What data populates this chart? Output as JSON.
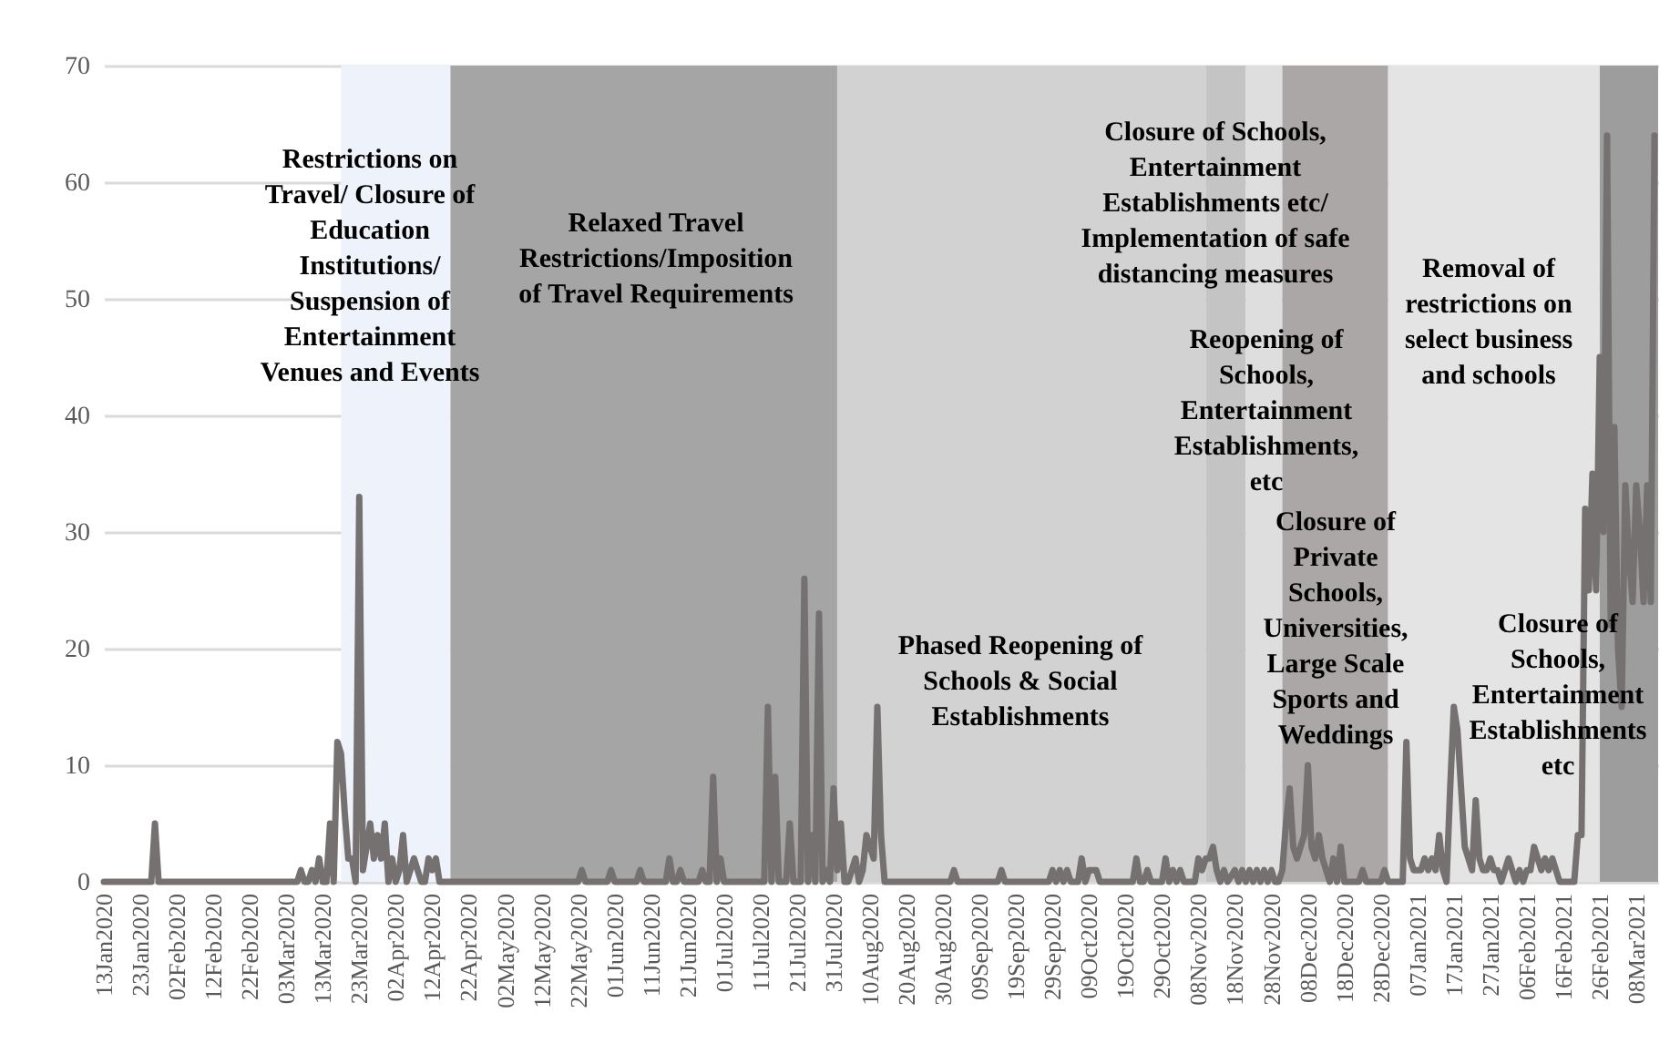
{
  "chart_data": {
    "type": "line",
    "series": [
      {
        "color": "#767171",
        "x": [
          "2020-01-13",
          "2020-01-26",
          "2020-01-27",
          "2020-01-28",
          "2020-03-06",
          "2020-03-07",
          "2020-03-08",
          "2020-03-09",
          "2020-03-10",
          "2020-03-11",
          "2020-03-12",
          "2020-03-13",
          "2020-03-14",
          "2020-03-15",
          "2020-03-16",
          "2020-03-17",
          "2020-03-18",
          "2020-03-19",
          "2020-03-20",
          "2020-03-21",
          "2020-03-22",
          "2020-03-23",
          "2020-03-24",
          "2020-03-25",
          "2020-03-26",
          "2020-03-27",
          "2020-03-28",
          "2020-03-29",
          "2020-03-30",
          "2020-03-31",
          "2020-04-01",
          "2020-04-02",
          "2020-04-03",
          "2020-04-04",
          "2020-04-05",
          "2020-04-06",
          "2020-04-07",
          "2020-04-08",
          "2020-04-09",
          "2020-04-10",
          "2020-04-11",
          "2020-04-12",
          "2020-04-13",
          "2020-04-14",
          "2020-05-22",
          "2020-05-23",
          "2020-05-24",
          "2020-05-30",
          "2020-05-31",
          "2020-06-01",
          "2020-06-07",
          "2020-06-08",
          "2020-06-09",
          "2020-06-15",
          "2020-06-16",
          "2020-06-17",
          "2020-06-18",
          "2020-06-19",
          "2020-06-20",
          "2020-06-24",
          "2020-06-25",
          "2020-06-26",
          "2020-06-27",
          "2020-06-28",
          "2020-06-29",
          "2020-06-30",
          "2020-07-01",
          "2020-07-12",
          "2020-07-13",
          "2020-07-14",
          "2020-07-15",
          "2020-07-16",
          "2020-07-18",
          "2020-07-19",
          "2020-07-20",
          "2020-07-22",
          "2020-07-23",
          "2020-07-24",
          "2020-07-25",
          "2020-07-26",
          "2020-07-27",
          "2020-07-28",
          "2020-07-29",
          "2020-07-30",
          "2020-07-31",
          "2020-08-01",
          "2020-08-02",
          "2020-08-03",
          "2020-08-04",
          "2020-08-05",
          "2020-08-06",
          "2020-08-07",
          "2020-08-08",
          "2020-08-09",
          "2020-08-10",
          "2020-08-11",
          "2020-08-12",
          "2020-08-13",
          "2020-08-14",
          "2020-09-01",
          "2020-09-02",
          "2020-09-03",
          "2020-09-14",
          "2020-09-15",
          "2020-09-16",
          "2020-09-28",
          "2020-09-29",
          "2020-09-30",
          "2020-10-01",
          "2020-10-02",
          "2020-10-03",
          "2020-10-04",
          "2020-10-06",
          "2020-10-07",
          "2020-10-08",
          "2020-10-09",
          "2020-10-10",
          "2020-10-11",
          "2020-10-12",
          "2020-10-21",
          "2020-10-22",
          "2020-10-23",
          "2020-10-24",
          "2020-10-25",
          "2020-10-26",
          "2020-10-29",
          "2020-10-30",
          "2020-10-31",
          "2020-11-01",
          "2020-11-02",
          "2020-11-03",
          "2020-11-04",
          "2020-11-07",
          "2020-11-08",
          "2020-11-09",
          "2020-11-10",
          "2020-11-11",
          "2020-11-12",
          "2020-11-13",
          "2020-11-14",
          "2020-11-15",
          "2020-11-16",
          "2020-11-18",
          "2020-11-19",
          "2020-11-20",
          "2020-11-21",
          "2020-11-22",
          "2020-11-23",
          "2020-11-24",
          "2020-11-25",
          "2020-11-26",
          "2020-11-27",
          "2020-11-28",
          "2020-11-29",
          "2020-11-30",
          "2020-12-01",
          "2020-12-02",
          "2020-12-03",
          "2020-12-04",
          "2020-12-05",
          "2020-12-06",
          "2020-12-07",
          "2020-12-08",
          "2020-12-09",
          "2020-12-10",
          "2020-12-11",
          "2020-12-12",
          "2020-12-13",
          "2020-12-14",
          "2020-12-15",
          "2020-12-16",
          "2020-12-17",
          "2020-12-18",
          "2020-12-22",
          "2020-12-23",
          "2020-12-24",
          "2020-12-28",
          "2020-12-29",
          "2020-12-30",
          "2021-01-03",
          "2021-01-04",
          "2021-01-05",
          "2021-01-06",
          "2021-01-07",
          "2021-01-08",
          "2021-01-09",
          "2021-01-10",
          "2021-01-11",
          "2021-01-12",
          "2021-01-13",
          "2021-01-14",
          "2021-01-15",
          "2021-01-16",
          "2021-01-17",
          "2021-01-18",
          "2021-01-19",
          "2021-01-20",
          "2021-01-21",
          "2021-01-22",
          "2021-01-23",
          "2021-01-24",
          "2021-01-25",
          "2021-01-26",
          "2021-01-27",
          "2021-01-28",
          "2021-01-29",
          "2021-01-30",
          "2021-01-31",
          "2021-02-01",
          "2021-02-02",
          "2021-02-03",
          "2021-02-04",
          "2021-02-05",
          "2021-02-06",
          "2021-02-07",
          "2021-02-08",
          "2021-02-09",
          "2021-02-10",
          "2021-02-11",
          "2021-02-12",
          "2021-02-13",
          "2021-02-14",
          "2021-02-15",
          "2021-02-19",
          "2021-02-20",
          "2021-02-21",
          "2021-02-22",
          "2021-02-23",
          "2021-02-24",
          "2021-02-25",
          "2021-02-26",
          "2021-02-27",
          "2021-02-28",
          "2021-03-01",
          "2021-03-02",
          "2021-03-03",
          "2021-03-04",
          "2021-03-05",
          "2021-03-06",
          "2021-03-07",
          "2021-03-08",
          "2021-03-09",
          "2021-03-10",
          "2021-03-11",
          "2021-03-12",
          "2021-03-13"
        ],
        "values": [
          0,
          0,
          5,
          0,
          0,
          1,
          0,
          0,
          1,
          0,
          2,
          0,
          0,
          5,
          0,
          12,
          11,
          6,
          2,
          2,
          0,
          33,
          1,
          3,
          5,
          2,
          4,
          2,
          5,
          0,
          2,
          0,
          1,
          4,
          0,
          1,
          2,
          1,
          0,
          0,
          2,
          1,
          2,
          0,
          0,
          1,
          0,
          0,
          1,
          0,
          0,
          1,
          0,
          0,
          2,
          0,
          0,
          1,
          0,
          0,
          1,
          0,
          0,
          9,
          0,
          2,
          0,
          0,
          15,
          0,
          9,
          0,
          0,
          5,
          0,
          0,
          26,
          0,
          4,
          0,
          23,
          0,
          1,
          0,
          8,
          1,
          5,
          0,
          0,
          1,
          2,
          0,
          1,
          4,
          3,
          2,
          15,
          4,
          0,
          0,
          1,
          0,
          0,
          1,
          0,
          0,
          1,
          0,
          1,
          0,
          1,
          0,
          0,
          2,
          0,
          1,
          1,
          1,
          0,
          0,
          2,
          0,
          0,
          1,
          0,
          0,
          2,
          0,
          1,
          0,
          1,
          0,
          0,
          2,
          1,
          2,
          2,
          3,
          1,
          0,
          1,
          0,
          1,
          0,
          1,
          0,
          1,
          0,
          1,
          0,
          1,
          0,
          1,
          0,
          0,
          1,
          5,
          8,
          3,
          2,
          3,
          4,
          10,
          3,
          2,
          4,
          2,
          1,
          0,
          2,
          0,
          3,
          0,
          0,
          1,
          0,
          0,
          1,
          0,
          0,
          12,
          2,
          1,
          1,
          1,
          2,
          1,
          2,
          1,
          4,
          1,
          0,
          8,
          15,
          13,
          8,
          3,
          2,
          1,
          7,
          2,
          1,
          1,
          2,
          1,
          1,
          0,
          1,
          2,
          1,
          0,
          1,
          0,
          1,
          1,
          3,
          2,
          1,
          2,
          1,
          2,
          1,
          0,
          0,
          4,
          4,
          32,
          25,
          35,
          25,
          45,
          30,
          64,
          22,
          39,
          20,
          15,
          34,
          28,
          24,
          34,
          30,
          24,
          34,
          24,
          64
        ]
      }
    ],
    "xlim": [
      "2020-01-13",
      "2021-03-14"
    ],
    "xticks": [
      {
        "value": "2020-01-13",
        "label": "13Jan2020"
      },
      {
        "value": "2020-01-23",
        "label": "23Jan2020"
      },
      {
        "value": "2020-02-02",
        "label": "02Feb2020"
      },
      {
        "value": "2020-02-12",
        "label": "12Feb2020"
      },
      {
        "value": "2020-02-22",
        "label": "22Feb2020"
      },
      {
        "value": "2020-03-03",
        "label": "03Mar2020"
      },
      {
        "value": "2020-03-13",
        "label": "13Mar2020"
      },
      {
        "value": "2020-03-23",
        "label": "23Mar2020"
      },
      {
        "value": "2020-04-02",
        "label": "02Apr2020"
      },
      {
        "value": "2020-04-12",
        "label": "12Apr2020"
      },
      {
        "value": "2020-04-22",
        "label": "22Apr2020"
      },
      {
        "value": "2020-05-02",
        "label": "02May2020"
      },
      {
        "value": "2020-05-12",
        "label": "12May2020"
      },
      {
        "value": "2020-05-22",
        "label": "22May2020"
      },
      {
        "value": "2020-06-01",
        "label": "01Jun2020"
      },
      {
        "value": "2020-06-11",
        "label": "11Jun2020"
      },
      {
        "value": "2020-06-21",
        "label": "21Jun2020"
      },
      {
        "value": "2020-07-01",
        "label": "01Jul2020"
      },
      {
        "value": "2020-07-11",
        "label": "11Jul2020"
      },
      {
        "value": "2020-07-21",
        "label": "21Jul2020"
      },
      {
        "value": "2020-07-31",
        "label": "31Jul2020"
      },
      {
        "value": "2020-08-10",
        "label": "10Aug2020"
      },
      {
        "value": "2020-08-20",
        "label": "20Aug2020"
      },
      {
        "value": "2020-08-30",
        "label": "30Aug2020"
      },
      {
        "value": "2020-09-09",
        "label": "09Sep2020"
      },
      {
        "value": "2020-09-19",
        "label": "19Sep2020"
      },
      {
        "value": "2020-09-29",
        "label": "29Sep2020"
      },
      {
        "value": "2020-10-09",
        "label": "09Oct2020"
      },
      {
        "value": "2020-10-19",
        "label": "19Oct2020"
      },
      {
        "value": "2020-10-29",
        "label": "29Oct2020"
      },
      {
        "value": "2020-11-08",
        "label": "08Nov2020"
      },
      {
        "value": "2020-11-18",
        "label": "18Nov2020"
      },
      {
        "value": "2020-11-28",
        "label": "28Nov2020"
      },
      {
        "value": "2020-12-08",
        "label": "08Dec2020"
      },
      {
        "value": "2020-12-18",
        "label": "18Dec2020"
      },
      {
        "value": "2020-12-28",
        "label": "28Dec2020"
      },
      {
        "value": "2021-01-07",
        "label": "07Jan2021"
      },
      {
        "value": "2021-01-17",
        "label": "17Jan2021"
      },
      {
        "value": "2021-01-27",
        "label": "27Jan2021"
      },
      {
        "value": "2021-02-06",
        "label": "06Feb2021"
      },
      {
        "value": "2021-02-16",
        "label": "16Feb2021"
      },
      {
        "value": "2021-02-26",
        "label": "26Feb2021"
      },
      {
        "value": "2021-03-08",
        "label": "08Mar2021"
      }
    ],
    "ylim": [
      0,
      70
    ],
    "yticks": [
      0,
      10,
      20,
      30,
      40,
      50,
      60,
      70
    ],
    "grid": "y",
    "bands": [
      {
        "axis": "x",
        "from": "2020-03-18",
        "to": "2020-04-17",
        "color": "#eef2fa",
        "label": "Restrictions on Travel/ Closure of Education Institutions/ Suspension of Entertainment Venues and Events"
      },
      {
        "axis": "x",
        "from": "2020-04-17",
        "to": "2020-08-01",
        "color": "#a5a5a5",
        "label": "Relaxed Travel Restrictions/Imposition of Travel Requirements"
      },
      {
        "axis": "x",
        "from": "2020-08-01",
        "to": "2020-11-10",
        "color": "#d2d2d2",
        "label": "Phased Reopening of Schools & Social Establishments"
      },
      {
        "axis": "x",
        "from": "2020-11-10",
        "to": "2020-11-21",
        "color": "#c4c4c4",
        "label": "Closure of Schools, Entertainment Establishments etc/ Implementation of safe distancing measures"
      },
      {
        "axis": "x",
        "from": "2020-11-21",
        "to": "2020-12-01",
        "color": "#dedede",
        "label": "Reopening of Schools, Entertainment Establishments, etc"
      },
      {
        "axis": "x",
        "from": "2020-12-01",
        "to": "2020-12-30",
        "color": "#aba7a7",
        "label": "Closure of Private Schools, Universities, Large Scale Sports and Weddings"
      },
      {
        "axis": "x",
        "from": "2020-12-30",
        "to": "2021-02-26",
        "color": "#e4e4e4",
        "label": "Removal of restrictions on select business and schools"
      },
      {
        "axis": "x",
        "from": "2021-02-26",
        "to": "2021-03-14",
        "color": "#9d9d9d",
        "label": "Closure of Schools, Entertainment Establishments etc"
      }
    ]
  }
}
